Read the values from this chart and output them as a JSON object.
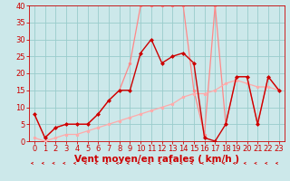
{
  "background_color": "#cce8ea",
  "grid_color": "#99cccc",
  "xlabel": "Vent moyen/en rafales ( km/h )",
  "xlim": [
    -0.5,
    23.5
  ],
  "ylim": [
    0,
    40
  ],
  "xticks": [
    0,
    1,
    2,
    3,
    4,
    5,
    6,
    7,
    8,
    9,
    10,
    11,
    12,
    13,
    14,
    15,
    16,
    17,
    18,
    19,
    20,
    21,
    22,
    23
  ],
  "yticks": [
    0,
    5,
    10,
    15,
    20,
    25,
    30,
    35,
    40
  ],
  "line_rafales_x": [
    0,
    1,
    2,
    3,
    4,
    5,
    6,
    7,
    8,
    9,
    10,
    11,
    12,
    13,
    14,
    15,
    16,
    17,
    18,
    19,
    20,
    21,
    22,
    23
  ],
  "line_rafales_y": [
    8,
    1,
    4,
    5,
    5,
    5,
    8,
    12,
    15,
    23,
    40,
    40,
    40,
    40,
    40,
    15,
    2,
    40,
    5,
    19,
    19,
    5,
    19,
    15
  ],
  "line_rafales_color": "#ff8888",
  "line_moy2_x": [
    0,
    1,
    2,
    3,
    4,
    5,
    6,
    7,
    8,
    9,
    10,
    11,
    12,
    13,
    14,
    15,
    16,
    17,
    18,
    19,
    20,
    21,
    22,
    23
  ],
  "line_moy2_y": [
    1,
    0,
    1,
    2,
    2,
    3,
    4,
    5,
    6,
    7,
    8,
    9,
    10,
    11,
    13,
    14,
    14,
    15,
    17,
    18,
    17,
    16,
    16,
    15
  ],
  "line_moy2_color": "#ffaaaa",
  "line_moy_x": [
    0,
    1,
    2,
    3,
    4,
    5,
    6,
    7,
    8,
    9,
    10,
    11,
    12,
    13,
    14,
    15,
    16,
    17,
    18,
    19,
    20,
    21,
    22,
    23
  ],
  "line_moy_y": [
    8,
    1,
    4,
    5,
    5,
    5,
    8,
    12,
    15,
    15,
    26,
    30,
    23,
    25,
    26,
    23,
    1,
    0,
    5,
    19,
    19,
    5,
    19,
    15
  ],
  "line_moy_color": "#cc0000",
  "marker_size": 2.5,
  "xlabel_color": "#cc0000",
  "xlabel_fontsize": 7.5,
  "tick_color": "#cc0000",
  "tick_fontsize": 6,
  "arrow_color": "#cc0000",
  "spine_color": "#cc0000"
}
